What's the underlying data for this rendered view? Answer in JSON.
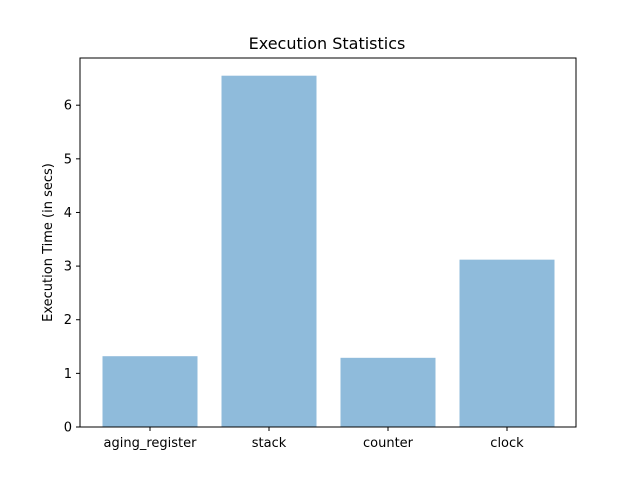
{
  "chart_data": {
    "type": "bar",
    "title": "Execution Statistics",
    "xlabel": "",
    "ylabel": "Execution Time (in secs)",
    "categories": [
      "aging_register",
      "stack",
      "counter",
      "clock"
    ],
    "values": [
      1.32,
      6.55,
      1.29,
      3.12
    ],
    "ylim": [
      0,
      6.88
    ],
    "yticks": [
      0,
      1,
      2,
      3,
      4,
      5,
      6
    ],
    "grid": false,
    "bar_color": "#8fbbdb"
  }
}
